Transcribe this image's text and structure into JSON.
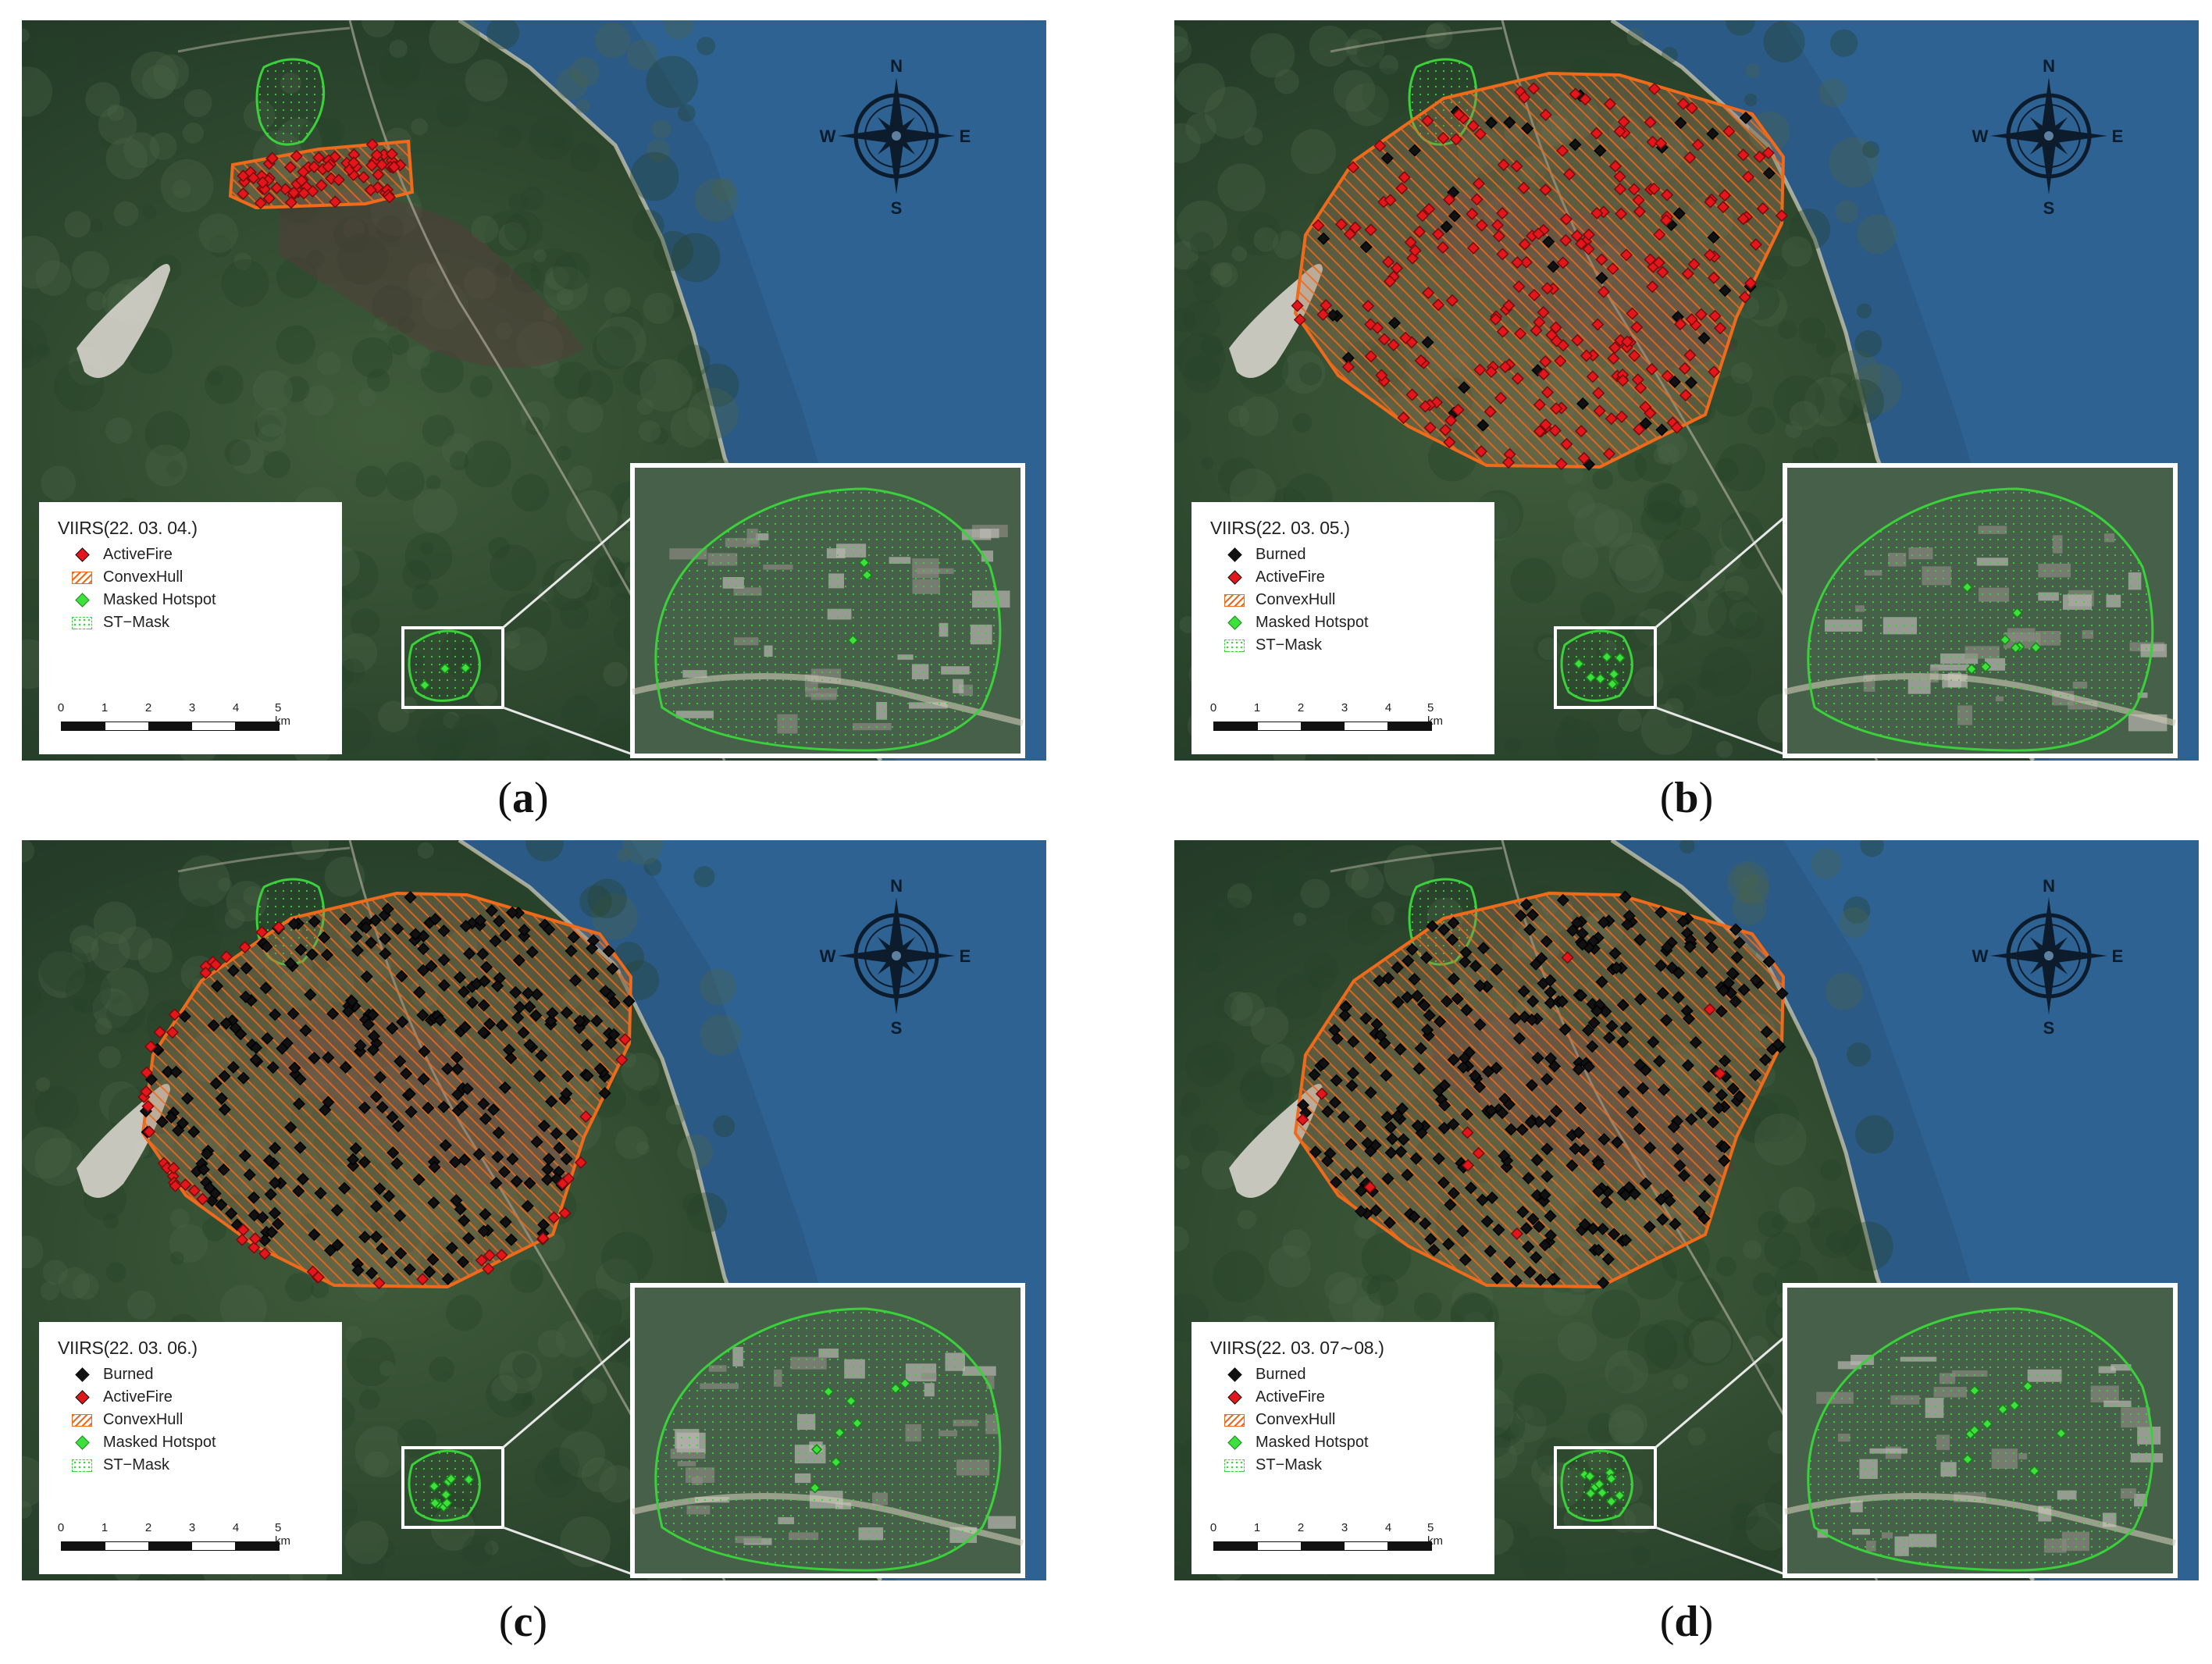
{
  "compass": {
    "n": "N",
    "e": "E",
    "s": "S",
    "w": "W"
  },
  "legend_labels": {
    "burned": "Burned",
    "active_fire": "ActiveFire",
    "convex_hull": "ConvexHull",
    "masked_hotspot": "Masked Hotspot",
    "st_mask": "ST−Mask"
  },
  "scale": {
    "ticks": [
      "0",
      "1",
      "2",
      "3",
      "4"
    ],
    "end": "5 km"
  },
  "panels": [
    {
      "id": "a",
      "open": "(",
      "letter": "a",
      "close": ")",
      "title": "VIIRS(22. 03. 04.)",
      "has_burned": false
    },
    {
      "id": "b",
      "open": "(",
      "letter": "b",
      "close": ")",
      "title": "VIIRS(22. 03. 05.)",
      "has_burned": true
    },
    {
      "id": "c",
      "open": "(",
      "letter": "c",
      "close": ")",
      "title": "VIIRS(22. 03. 06.)",
      "has_burned": true
    },
    {
      "id": "d",
      "open": "(",
      "letter": "d",
      "close": ")",
      "title": "VIIRS(22. 03. 07∼08.)",
      "has_burned": true
    }
  ],
  "colors": {
    "active_fire": "#e3161b",
    "burned": "#111111",
    "convex_hull": "#ef6a1a",
    "masked_hotspot": "#3ee03e",
    "st_mask": "#3ad13a",
    "sea": "#2b5a86",
    "land": "#2c4a30"
  }
}
